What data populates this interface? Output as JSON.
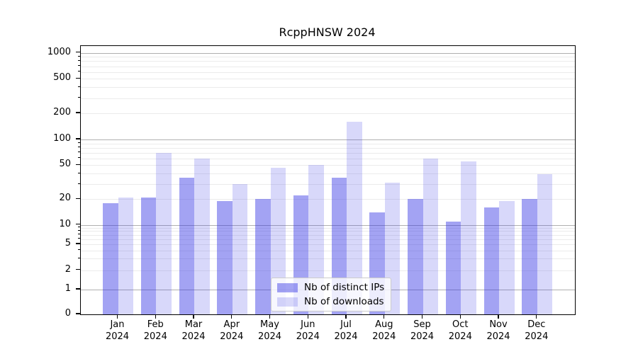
{
  "chart_data": {
    "type": "bar",
    "title": "RcppHNSW 2024",
    "year_label": "2024",
    "categories": [
      "Jan",
      "Feb",
      "Mar",
      "Apr",
      "May",
      "Jun",
      "Jul",
      "Aug",
      "Sep",
      "Oct",
      "Nov",
      "Dec"
    ],
    "series": [
      {
        "name": "Nb of distinct IPs",
        "hex": "#a3a3f2",
        "fill": "rgba(51,51,228,0.45)",
        "values": [
          18,
          21,
          36,
          19,
          20,
          22,
          36,
          14,
          20,
          11,
          16,
          20
        ]
      },
      {
        "name": "Nb of downloads",
        "hex": "#d8d8fa",
        "fill": "rgba(60,60,230,0.2)",
        "values": [
          21,
          70,
          60,
          30,
          47,
          50,
          160,
          31,
          60,
          55,
          19,
          39
        ]
      }
    ],
    "y_axis": {
      "scale": "log",
      "tick_labels": [
        0,
        1,
        2,
        5,
        10,
        20,
        50,
        100,
        200,
        500,
        1000
      ],
      "major_gridlines": [
        1,
        10,
        100,
        1000
      ],
      "minor_gridlines": [
        2,
        3,
        4,
        5,
        6,
        7,
        8,
        9,
        20,
        30,
        40,
        50,
        60,
        70,
        80,
        90,
        200,
        300,
        400,
        500,
        600,
        700,
        800,
        900
      ],
      "ylim": [
        0,
        1200
      ]
    },
    "grid": "on",
    "legend_position": "inside-bottom-center"
  }
}
